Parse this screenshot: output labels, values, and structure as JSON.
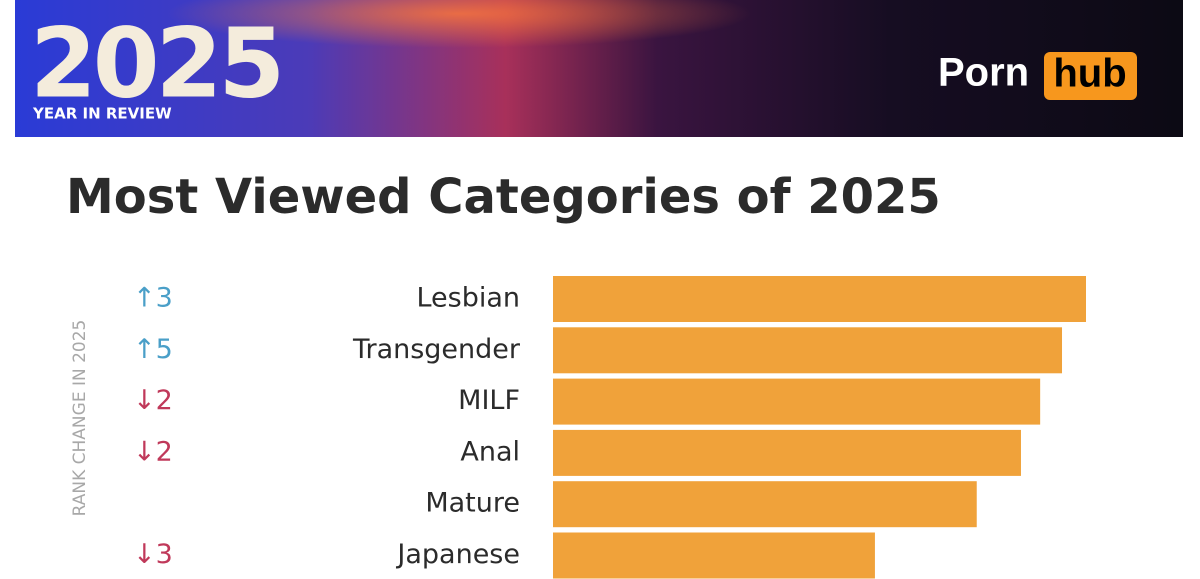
{
  "header": {
    "year": "2025",
    "subtitle": "YEAR IN REVIEW",
    "logo_left": "Porn",
    "logo_right": "hub"
  },
  "chart_data": {
    "type": "bar",
    "orientation": "horizontal",
    "title": "Most Viewed Categories of 2025",
    "rank_axis_label": "RANK CHANGE IN 2025",
    "categories": [
      "Lesbian",
      "Transgender",
      "MILF",
      "Anal",
      "Mature",
      "Japanese"
    ],
    "values": [
      100,
      95.5,
      91.4,
      87.8,
      79.5,
      60.4
    ],
    "rank_change": [
      "↑3",
      "↑5",
      "↓2",
      "↓2",
      null,
      "↓3"
    ],
    "color": "#f0a23a",
    "xlim": [
      0,
      100
    ]
  }
}
